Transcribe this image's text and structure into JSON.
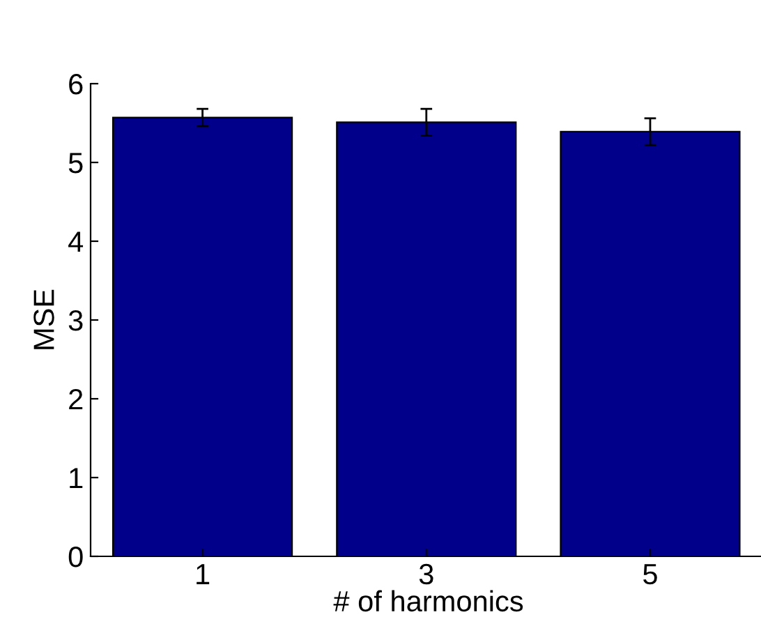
{
  "chart_data": {
    "type": "bar",
    "xlabel": "# of harmonics",
    "ylabel": "MSE",
    "categories": [
      "1",
      "3",
      "5"
    ],
    "values": [
      5.57,
      5.51,
      5.39
    ],
    "errors": [
      0.11,
      0.17,
      0.17
    ],
    "color": "#00008b",
    "ylim": [
      0,
      6
    ],
    "yticks": [
      0,
      1,
      2,
      3,
      4,
      5,
      6
    ],
    "grid": false,
    "legend": false
  }
}
